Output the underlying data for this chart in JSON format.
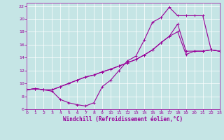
{
  "xlabel": "Windchill (Refroidissement éolien,°C)",
  "xlim": [
    0,
    23
  ],
  "ylim": [
    6,
    22.5
  ],
  "xticks": [
    0,
    1,
    2,
    3,
    4,
    5,
    6,
    7,
    8,
    9,
    10,
    11,
    12,
    13,
    14,
    15,
    16,
    17,
    18,
    19,
    20,
    21,
    22,
    23
  ],
  "yticks": [
    6,
    8,
    10,
    12,
    14,
    16,
    18,
    20,
    22
  ],
  "bg_color": "#c5e5e5",
  "grid_color": "#ffffff",
  "line_color": "#990099",
  "curve1_x": [
    0,
    1,
    2,
    3,
    4,
    5,
    6,
    7,
    8,
    9,
    10,
    11,
    12,
    13,
    14,
    15,
    16,
    17,
    18,
    19,
    20,
    21,
    22,
    23
  ],
  "curve1_y": [
    9.0,
    9.2,
    9.0,
    8.8,
    7.5,
    7.0,
    6.7,
    6.5,
    7.0,
    9.5,
    10.5,
    12.0,
    13.5,
    14.2,
    16.7,
    19.5,
    20.2,
    21.8,
    20.5,
    20.5,
    20.5,
    20.5,
    15.2,
    15.0
  ],
  "curve2_x": [
    0,
    1,
    2,
    3,
    4,
    5,
    6,
    7,
    8,
    9,
    10,
    11,
    12,
    13,
    14,
    15,
    16,
    17,
    18,
    19,
    20,
    21,
    22,
    23
  ],
  "curve2_y": [
    9.0,
    9.2,
    9.0,
    9.0,
    9.5,
    10.0,
    10.5,
    11.0,
    11.3,
    11.8,
    12.2,
    12.7,
    13.2,
    13.7,
    14.4,
    15.2,
    16.3,
    17.3,
    19.2,
    15.0,
    15.0,
    15.0,
    15.2,
    15.0
  ],
  "curve3_x": [
    0,
    1,
    2,
    3,
    4,
    5,
    6,
    7,
    8,
    9,
    10,
    11,
    12,
    13,
    14,
    15,
    16,
    17,
    18,
    19,
    20,
    21,
    22,
    23
  ],
  "curve3_y": [
    9.0,
    9.2,
    9.0,
    9.0,
    9.5,
    10.0,
    10.5,
    11.0,
    11.3,
    11.8,
    12.2,
    12.7,
    13.2,
    13.7,
    14.4,
    15.2,
    16.3,
    17.3,
    18.0,
    14.5,
    15.0,
    15.0,
    15.2,
    15.0
  ],
  "marker": "+",
  "markersize": 3,
  "linewidth": 0.8,
  "tick_fontsize": 4.5,
  "xlabel_fontsize": 5.5
}
